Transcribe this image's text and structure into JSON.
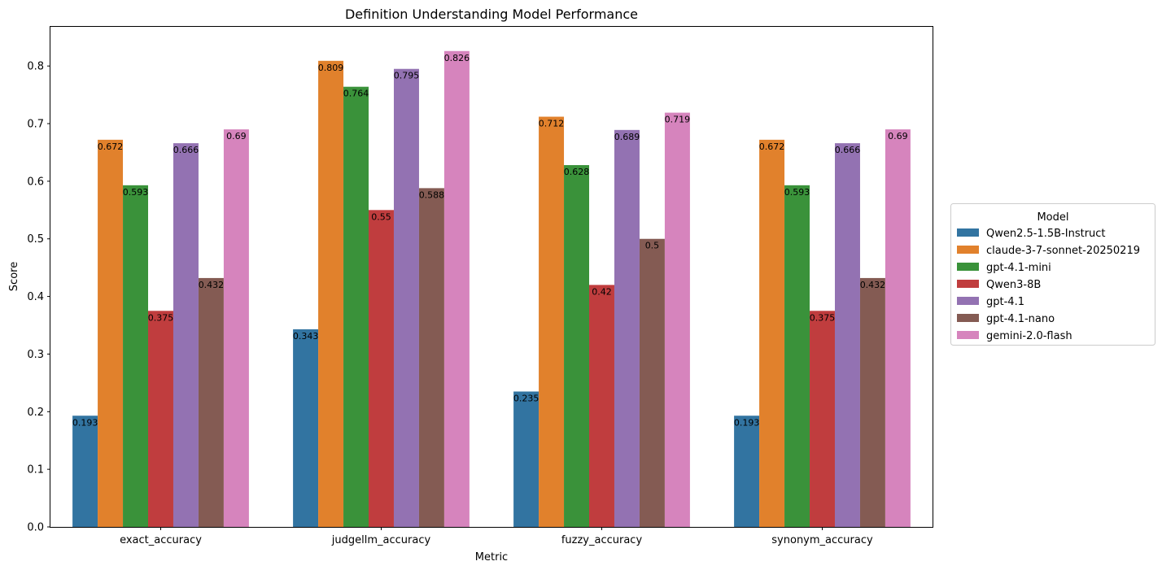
{
  "chart_data": {
    "type": "bar",
    "title": "Definition Understanding Model Performance",
    "xlabel": "Metric",
    "ylabel": "Score",
    "ylim": [
      0,
      0.868
    ],
    "yticks": [
      "0.0",
      "0.1",
      "0.2",
      "0.3",
      "0.4",
      "0.5",
      "0.6",
      "0.7",
      "0.8"
    ],
    "grid": false,
    "legend": {
      "title": "Model",
      "placement": "center-right-outside"
    },
    "categories": [
      "exact_accuracy",
      "judgellm_accuracy",
      "fuzzy_accuracy",
      "synonym_accuracy"
    ],
    "series": [
      {
        "name": "Qwen2.5-1.5B-Instruct",
        "color": "#3274a1",
        "values": [
          0.193,
          0.343,
          0.235,
          0.193
        ],
        "labels": [
          "0.193",
          "0.343",
          "0.235",
          "0.193"
        ]
      },
      {
        "name": "claude-3-7-sonnet-20250219",
        "color": "#e1812c",
        "values": [
          0.672,
          0.809,
          0.712,
          0.672
        ],
        "labels": [
          "0.672",
          "0.809",
          "0.712",
          "0.672"
        ]
      },
      {
        "name": "gpt-4.1-mini",
        "color": "#3a923a",
        "values": [
          0.593,
          0.764,
          0.628,
          0.593
        ],
        "labels": [
          "0.593",
          "0.764",
          "0.628",
          "0.593"
        ]
      },
      {
        "name": "Qwen3-8B",
        "color": "#c03d3e",
        "values": [
          0.375,
          0.55,
          0.42,
          0.375
        ],
        "labels": [
          "0.375",
          "0.55",
          "0.42",
          "0.375"
        ]
      },
      {
        "name": "gpt-4.1",
        "color": "#9372b2",
        "values": [
          0.666,
          0.795,
          0.689,
          0.666
        ],
        "labels": [
          "0.666",
          "0.795",
          "0.689",
          "0.666"
        ]
      },
      {
        "name": "gpt-4.1-nano",
        "color": "#845b53",
        "values": [
          0.432,
          0.588,
          0.5,
          0.432
        ],
        "labels": [
          "0.432",
          "0.588",
          "0.5",
          "0.432"
        ]
      },
      {
        "name": "gemini-2.0-flash",
        "color": "#d684bd",
        "values": [
          0.69,
          0.826,
          0.719,
          0.69
        ],
        "labels": [
          "0.69",
          "0.826",
          "0.719",
          "0.69"
        ]
      }
    ]
  }
}
